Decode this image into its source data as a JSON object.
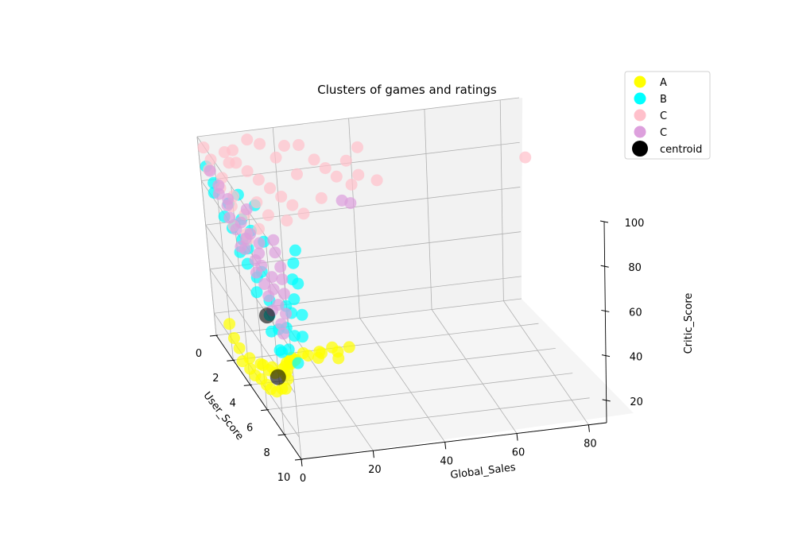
{
  "chart_data": {
    "type": "scatter",
    "projection": "3d",
    "title": "Clusters of games and ratings",
    "xlabel": "User_Score",
    "ylabel": "Global_Sales",
    "zlabel": "Critic_Score",
    "xlim": [
      0,
      10
    ],
    "ylim": [
      0,
      85
    ],
    "zlim": [
      10,
      100
    ],
    "x_ticks": [
      0,
      2,
      4,
      6,
      8,
      10
    ],
    "y_ticks": [
      0,
      20,
      40,
      60,
      80
    ],
    "z_ticks": [
      20,
      40,
      60,
      80,
      100
    ],
    "grid": true,
    "legend_position": "top-right",
    "series": [
      {
        "name": "A",
        "color": "#ffff00",
        "points": [
          [
            8.6,
            0.4,
            34
          ],
          [
            7.9,
            0.8,
            30
          ],
          [
            8.2,
            1.5,
            38
          ],
          [
            7.4,
            0.3,
            26
          ],
          [
            8.9,
            0.6,
            40
          ],
          [
            7.0,
            1.1,
            32
          ],
          [
            6.5,
            0.5,
            22
          ],
          [
            8.0,
            2.5,
            42
          ],
          [
            7.6,
            3.2,
            36
          ],
          [
            5.8,
            0.9,
            20
          ],
          [
            6.2,
            2.0,
            30
          ],
          [
            8.4,
            4.0,
            45
          ],
          [
            5.0,
            1.2,
            18
          ],
          [
            4.5,
            0.6,
            17
          ],
          [
            7.2,
            5.0,
            38
          ],
          [
            6.8,
            6.0,
            34
          ],
          [
            3.8,
            0.8,
            16
          ],
          [
            3.0,
            0.5,
            15
          ],
          [
            6.0,
            8.0,
            32
          ],
          [
            5.5,
            10,
            28
          ],
          [
            2.5,
            1.0,
            18
          ],
          [
            7.8,
            12,
            44
          ],
          [
            6.6,
            15,
            36
          ],
          [
            5.2,
            9,
            25
          ],
          [
            8.1,
            7,
            46
          ],
          [
            4.2,
            3,
            20
          ],
          [
            7.3,
            18,
            40
          ],
          [
            6.9,
            22,
            39
          ],
          [
            5.9,
            1.7,
            27
          ],
          [
            4.8,
            2.4,
            23
          ],
          [
            3.5,
            1.5,
            19
          ],
          [
            2.2,
            0.4,
            21
          ],
          [
            1.6,
            0.7,
            24
          ],
          [
            8.7,
            2.2,
            47
          ],
          [
            7.5,
            9.5,
            41
          ],
          [
            6.3,
            4.5,
            29
          ],
          [
            5.6,
            6.8,
            26
          ],
          [
            7.1,
            13,
            37
          ],
          [
            8.3,
            16,
            43
          ],
          [
            6.1,
            19,
            35
          ]
        ]
      },
      {
        "name": "B",
        "color": "#00ffff",
        "points": [
          [
            8.5,
            0.5,
            50
          ],
          [
            8.0,
            1.0,
            48
          ],
          [
            7.6,
            2.0,
            55
          ],
          [
            7.2,
            0.8,
            52
          ],
          [
            6.8,
            1.5,
            57
          ],
          [
            6.2,
            3.0,
            60
          ],
          [
            5.8,
            0.6,
            62
          ],
          [
            5.2,
            2.2,
            65
          ],
          [
            4.6,
            1.2,
            68
          ],
          [
            4.0,
            0.7,
            70
          ],
          [
            3.4,
            2.8,
            72
          ],
          [
            2.8,
            1.6,
            74
          ],
          [
            2.2,
            0.9,
            76
          ],
          [
            1.6,
            3.5,
            78
          ],
          [
            1.0,
            1.1,
            80
          ],
          [
            8.8,
            4.0,
            46
          ],
          [
            7.9,
            5.5,
            53
          ],
          [
            7.0,
            7.0,
            58
          ],
          [
            6.5,
            9.0,
            61
          ],
          [
            5.5,
            11,
            64
          ],
          [
            4.8,
            13,
            67
          ],
          [
            4.2,
            15,
            69
          ],
          [
            3.6,
            8.0,
            71
          ],
          [
            3.0,
            6.0,
            73
          ],
          [
            2.4,
            5.0,
            75
          ],
          [
            1.8,
            10,
            77
          ],
          [
            1.2,
            7.0,
            79
          ],
          [
            0.6,
            2.0,
            82
          ],
          [
            0.3,
            1.0,
            88
          ],
          [
            8.2,
            3.0,
            49
          ],
          [
            7.4,
            4.5,
            54
          ],
          [
            6.6,
            6.5,
            59
          ],
          [
            5.0,
            4.0,
            66
          ],
          [
            3.8,
            3.3,
            70
          ],
          [
            2.6,
            2.6,
            74
          ],
          [
            7.7,
            8.0,
            51
          ],
          [
            6.9,
            10,
            56
          ],
          [
            5.7,
            12,
            63
          ]
        ]
      },
      {
        "name": "C",
        "color": "#ffc0cb",
        "points": [
          [
            0.2,
            1.0,
            96
          ],
          [
            0.5,
            2.0,
            92
          ],
          [
            0.9,
            0.5,
            90
          ],
          [
            1.3,
            3.0,
            88
          ],
          [
            1.7,
            1.5,
            86
          ],
          [
            2.1,
            4.0,
            84
          ],
          [
            2.5,
            2.5,
            82
          ],
          [
            2.9,
            5.0,
            80
          ],
          [
            3.3,
            1.0,
            78
          ],
          [
            3.7,
            3.5,
            76
          ],
          [
            0.4,
            6.0,
            94
          ],
          [
            0.8,
            8.0,
            91
          ],
          [
            1.2,
            10,
            89
          ],
          [
            1.6,
            12,
            87
          ],
          [
            2.0,
            14,
            85
          ],
          [
            2.4,
            16,
            83
          ],
          [
            2.8,
            18,
            81
          ],
          [
            3.2,
            20,
            79
          ],
          [
            0.3,
            22,
            93
          ],
          [
            0.7,
            25,
            95
          ],
          [
            1.1,
            28,
            90
          ],
          [
            1.5,
            30,
            88
          ],
          [
            1.9,
            32,
            86
          ],
          [
            2.3,
            35,
            84
          ],
          [
            0.6,
            15,
            97
          ],
          [
            1.0,
            7,
            98
          ],
          [
            1.4,
            5,
            95
          ],
          [
            2.6,
            9,
            83
          ],
          [
            3.0,
            11,
            79
          ],
          [
            3.6,
            7,
            77
          ],
          [
            4.0,
            3,
            75
          ],
          [
            1.8,
            38,
            85
          ],
          [
            1.3,
            36,
            89
          ],
          [
            0.9,
            40,
            92
          ],
          [
            2.2,
            42,
            84
          ],
          [
            0.5,
            12,
            99
          ],
          [
            1.1,
            18,
            93
          ],
          [
            1.7,
            22,
            88
          ],
          [
            2.7,
            26,
            82
          ],
          [
            3.4,
            15,
            78
          ],
          [
            2.0,
            82,
            85
          ]
        ]
      },
      {
        "name": "C",
        "color": "#dda0dd",
        "points": [
          [
            7.8,
            0.4,
            65
          ],
          [
            7.2,
            0.9,
            68
          ],
          [
            6.6,
            1.3,
            70
          ],
          [
            6.0,
            0.6,
            72
          ],
          [
            5.4,
            1.8,
            74
          ],
          [
            4.8,
            0.5,
            76
          ],
          [
            4.2,
            2.2,
            77
          ],
          [
            3.6,
            1.0,
            78
          ],
          [
            3.0,
            0.7,
            80
          ],
          [
            2.4,
            1.6,
            82
          ],
          [
            1.8,
            0.8,
            84
          ],
          [
            8.4,
            1.2,
            62
          ],
          [
            7.6,
            2.5,
            66
          ],
          [
            6.9,
            3.0,
            69
          ],
          [
            6.3,
            4.0,
            71
          ],
          [
            5.7,
            2.7,
            73
          ],
          [
            5.1,
            3.5,
            75
          ],
          [
            4.5,
            5.0,
            76
          ],
          [
            3.9,
            4.0,
            77
          ],
          [
            3.3,
            3.0,
            79
          ],
          [
            2.7,
            6.0,
            81
          ],
          [
            2.1,
            2.5,
            83
          ],
          [
            1.5,
            1.5,
            86
          ],
          [
            1.0,
            0.6,
            90
          ],
          [
            7.0,
            5.5,
            67
          ],
          [
            6.4,
            6.5,
            70
          ],
          [
            5.8,
            7.5,
            72
          ],
          [
            5.0,
            8.0,
            74
          ],
          [
            4.4,
            9.0,
            76
          ],
          [
            8.0,
            3.5,
            64
          ],
          [
            8.8,
            0.8,
            60
          ],
          [
            3.0,
            33,
            80
          ],
          [
            2.4,
            32,
            78
          ],
          [
            3.6,
            1.8,
            70
          ]
        ]
      }
    ],
    "centroids": {
      "name": "centroid",
      "color": "#000000",
      "points": [
        [
          7.5,
          0.8,
          33
        ],
        [
          6.8,
          0.8,
          57
        ]
      ]
    }
  }
}
